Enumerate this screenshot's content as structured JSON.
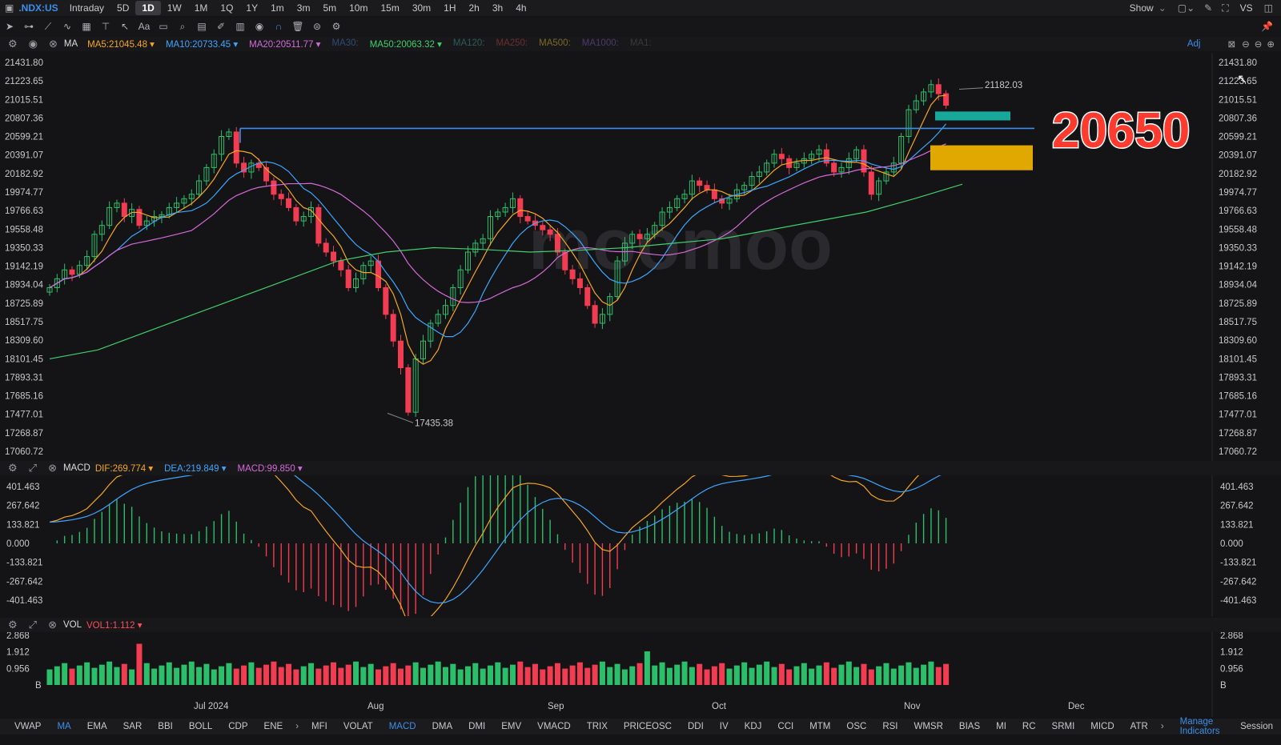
{
  "topbar": {
    "symbol": ".NDX:US",
    "timeframes": [
      "Intraday",
      "5D",
      "1D",
      "1W",
      "1M",
      "1Q",
      "1Y",
      "1m",
      "3m",
      "5m",
      "10m",
      "15m",
      "30m",
      "1H",
      "2h",
      "3h",
      "4h"
    ],
    "active": "1D",
    "show_label": "Show",
    "vs_label": "VS"
  },
  "ma_row": {
    "prefix": "MA",
    "items": [
      {
        "label": "MA5:21045.48",
        "color": "#f5a623",
        "dim": false
      },
      {
        "label": "MA10:20733.45",
        "color": "#3ea6ff",
        "dim": false
      },
      {
        "label": "MA20:20511.77",
        "color": "#d46ad8",
        "dim": false
      },
      {
        "label": "MA30:",
        "color": "#2e4d73",
        "dim": true
      },
      {
        "label": "MA50:20063.32",
        "color": "#3fcf6b",
        "dim": false
      },
      {
        "label": "MA120:",
        "color": "#2a5c5a",
        "dim": true
      },
      {
        "label": "MA250:",
        "color": "#6b2f2f",
        "dim": true
      },
      {
        "label": "MA500:",
        "color": "#7a6a22",
        "dim": true
      },
      {
        "label": "MA1000:",
        "color": "#4b3a6b",
        "dim": true
      },
      {
        "label": "MA1:",
        "color": "#3a3a3a",
        "dim": true
      }
    ],
    "adj_label": "Adj"
  },
  "price_axis": [
    "21431.80",
    "21223.65",
    "21015.51",
    "20807.36",
    "20599.21",
    "20391.07",
    "20182.92",
    "19974.77",
    "19766.63",
    "19558.48",
    "19350.33",
    "19142.19",
    "18934.04",
    "18725.89",
    "18517.75",
    "18309.60",
    "18101.45",
    "17893.31",
    "17685.16",
    "17477.01",
    "17268.87",
    "17060.72"
  ],
  "annotations": {
    "high_label": "21182.03",
    "low_label": "17435.38",
    "big_number": "20650",
    "watermark": "moomoo"
  },
  "macd_row": {
    "prefix": "MACD",
    "items": [
      {
        "label": "DIF:269.774",
        "color": "#f5a623"
      },
      {
        "label": "DEA:219.849",
        "color": "#3ea6ff"
      },
      {
        "label": "MACD:99.850",
        "color": "#d46ad8"
      }
    ],
    "axis": [
      "401.463",
      "267.642",
      "133.821",
      "0.000",
      "-133.821",
      "-267.642",
      "-401.463"
    ]
  },
  "vol_row": {
    "prefix": "VOL",
    "items": [
      {
        "label": "VOL1:1.112",
        "color": "#ff4d5e"
      }
    ],
    "axis": [
      "2.868",
      "1.912",
      "0.956",
      "B"
    ]
  },
  "months": [
    "Jul 2024",
    "Aug",
    "Sep",
    "Oct",
    "Nov",
    "Dec"
  ],
  "bottom_tabs": [
    "VWAP",
    "MA",
    "EMA",
    "SAR",
    "BBI",
    "BOLL",
    "CDP",
    "ENE",
    "MFI",
    "VOLAT",
    "MACD",
    "DMA",
    "DMI",
    "EMV",
    "VMACD",
    "TRIX",
    "PRICEOSC",
    "DDI",
    "IV",
    "KDJ",
    "CCI",
    "MTM",
    "OSC",
    "RSI",
    "WMSR",
    "BIAS",
    "MI",
    "RC",
    "SRMI",
    "MICD",
    "ATR"
  ],
  "active_tabs": [
    "MA",
    "MACD"
  ],
  "manage_label": "Manage Indicators",
  "session_label": "Session",
  "colors": {
    "up": "#2bbf6b",
    "down": "#f23c52",
    "ma5": "#f5a623",
    "ma10": "#3ea6ff",
    "ma20": "#d46ad8",
    "ma50": "#3fcf6b",
    "resistance": "#3b8eea",
    "zone_teal": "#17a89a",
    "zone_gold": "#e0a800",
    "big_number": "#ff3b30"
  },
  "chart_data": {
    "type": "candlestick",
    "ylim": [
      17060.72,
      21431.8
    ],
    "closes": [
      18900,
      19000,
      19100,
      19050,
      19150,
      19250,
      19500,
      19600,
      19800,
      19850,
      19700,
      19780,
      19600,
      19650,
      19700,
      19720,
      19800,
      19850,
      19900,
      19950,
      20100,
      20250,
      20400,
      20600,
      20650,
      20300,
      20200,
      20300,
      20250,
      20100,
      19950,
      19900,
      19800,
      19650,
      19700,
      19800,
      19400,
      19300,
      19200,
      19100,
      18900,
      19000,
      19150,
      19200,
      18900,
      18600,
      18300,
      18000,
      17500,
      18100,
      18300,
      18500,
      18600,
      18700,
      18900,
      19100,
      19300,
      19400,
      19450,
      19700,
      19750,
      19800,
      19900,
      19700,
      19650,
      19600,
      19550,
      19500,
      19300,
      19100,
      19000,
      18900,
      18700,
      18500,
      18600,
      18800,
      19200,
      19400,
      19500,
      19450,
      19500,
      19600,
      19750,
      19800,
      19900,
      19950,
      20100,
      20050,
      20000,
      19900,
      19850,
      19900,
      20000,
      20050,
      20150,
      20200,
      20300,
      20400,
      20350,
      20250,
      20300,
      20350,
      20400,
      20450,
      20300,
      20200,
      20250,
      20350,
      20450,
      20200,
      19950,
      20100,
      20200,
      20300,
      20600,
      20900,
      21000,
      21100,
      21182,
      21080,
      20950
    ],
    "ma50_y": [
      18100,
      18200,
      18400,
      18600,
      18800,
      19000,
      19200,
      19300,
      19350,
      19330,
      19300,
      19320,
      19350,
      19400,
      19450,
      19550,
      19650,
      19750,
      19900,
      20063
    ],
    "macd_hist_range": [
      -401.463,
      401.463
    ],
    "vol_range": [
      0,
      2.868
    ]
  }
}
